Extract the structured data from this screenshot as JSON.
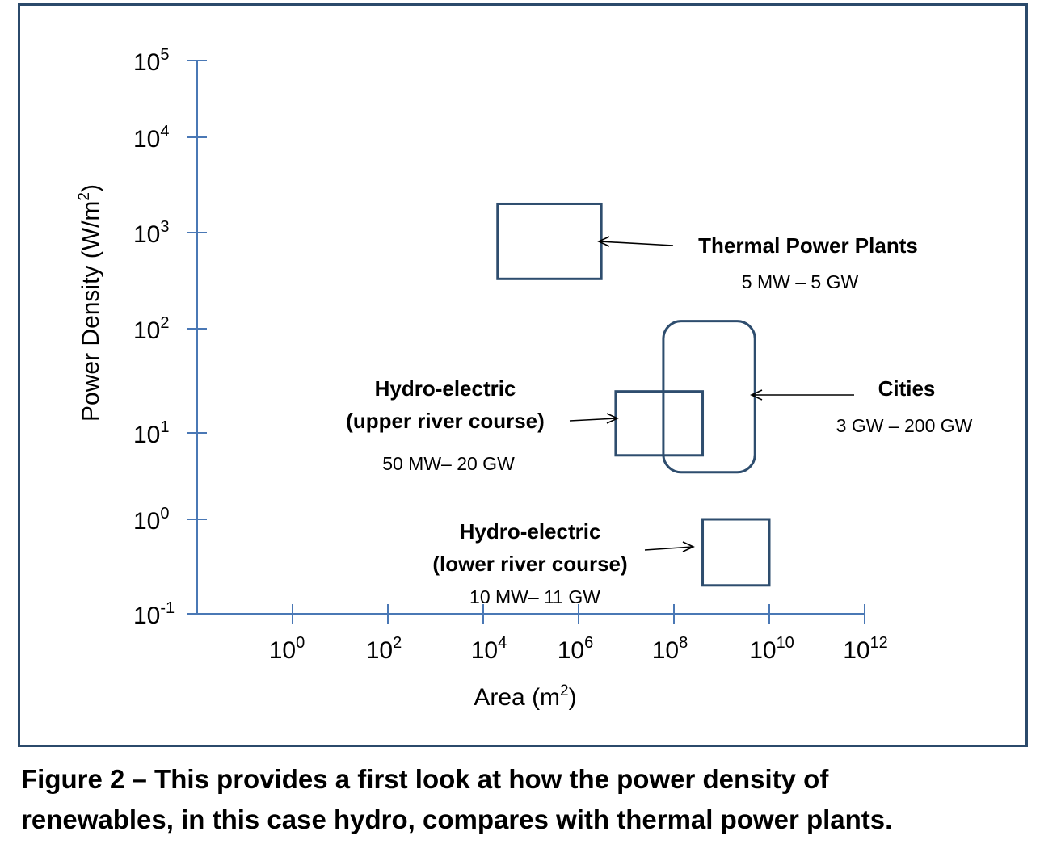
{
  "chart_data": {
    "type": "scatter",
    "title": "",
    "xlabel": "Area (m2)",
    "ylabel": "Power Density (W/m2)",
    "x_scale": "log",
    "y_scale": "log",
    "x_ticks": [
      {
        "base": "10",
        "exp": "0",
        "value": 1
      },
      {
        "base": "10",
        "exp": "2",
        "value": 100
      },
      {
        "base": "10",
        "exp": "4",
        "value": 10000
      },
      {
        "base": "10",
        "exp": "6",
        "value": 1000000
      },
      {
        "base": "10",
        "exp": "8",
        "value": 100000000
      },
      {
        "base": "10",
        "exp": "10",
        "value": 10000000000
      },
      {
        "base": "10",
        "exp": "12",
        "value": 1000000000000
      }
    ],
    "y_ticks": [
      {
        "base": "10",
        "exp": "-1",
        "value": 0.1
      },
      {
        "base": "10",
        "exp": "0",
        "value": 1
      },
      {
        "base": "10",
        "exp": "1",
        "value": 10
      },
      {
        "base": "10",
        "exp": "2",
        "value": 100
      },
      {
        "base": "10",
        "exp": "3",
        "value": 1000
      },
      {
        "base": "10",
        "exp": "4",
        "value": 10000
      },
      {
        "base": "10",
        "exp": "5",
        "value": 100000
      }
    ],
    "regions": [
      {
        "label": "Thermal Power Plants",
        "range": "5 MW – 5 GW",
        "x_min": 20000,
        "x_max": 3000000,
        "y_min": 330,
        "y_max": 2000,
        "shape": "rect",
        "color": "#2e4d6e"
      },
      {
        "label": "Cities",
        "range": "3 GW – 200 GW",
        "x_min": 60000000,
        "x_max": 5000000000,
        "y_min": 3.5,
        "y_max": 120,
        "shape": "rounded",
        "color": "#2e4d6e"
      },
      {
        "label": "Hydro-electric (upper river course)",
        "range": "50  MW– 20 GW",
        "x_min": 6000000,
        "x_max": 400000000,
        "y_min": 5.5,
        "y_max": 25,
        "shape": "rect",
        "color": "#2e4d6e"
      },
      {
        "label": "Hydro-electric (lower river course)",
        "range": "10  MW– 11 GW",
        "x_min": 400000000,
        "x_max": 10000000000,
        "y_min": 0.2,
        "y_max": 1,
        "shape": "rect",
        "color": "#2e4d6e"
      }
    ],
    "grid": false,
    "legend": "none"
  },
  "texts": {
    "ylabel_main": "Power Density (W/m",
    "ylabel_sup": "2",
    "ylabel_close": ")",
    "xlabel_main": "Area (m",
    "xlabel_sup": "2",
    "xlabel_close": ")",
    "thermal_title": "Thermal Power Plants",
    "thermal_range": "5 MW – 5 GW",
    "cities_title": "Cities",
    "cities_range": "3 GW – 200 GW",
    "upper_title_1": "Hydro-electric",
    "upper_title_2": "(upper river course)",
    "upper_range": "50  MW– 20 GW",
    "lower_title_1": "Hydro-electric",
    "lower_title_2": "(lower river course)",
    "lower_range": "10  MW– 11 GW"
  },
  "caption": {
    "line1": "Figure 2 – This provides a first look at how the power density of",
    "line2": "renewables, in this case hydro, compares with thermal power plants."
  },
  "colors": {
    "axis": "#4a78b5",
    "box": "#2e4d6e",
    "frame": "#2b4a6b"
  }
}
